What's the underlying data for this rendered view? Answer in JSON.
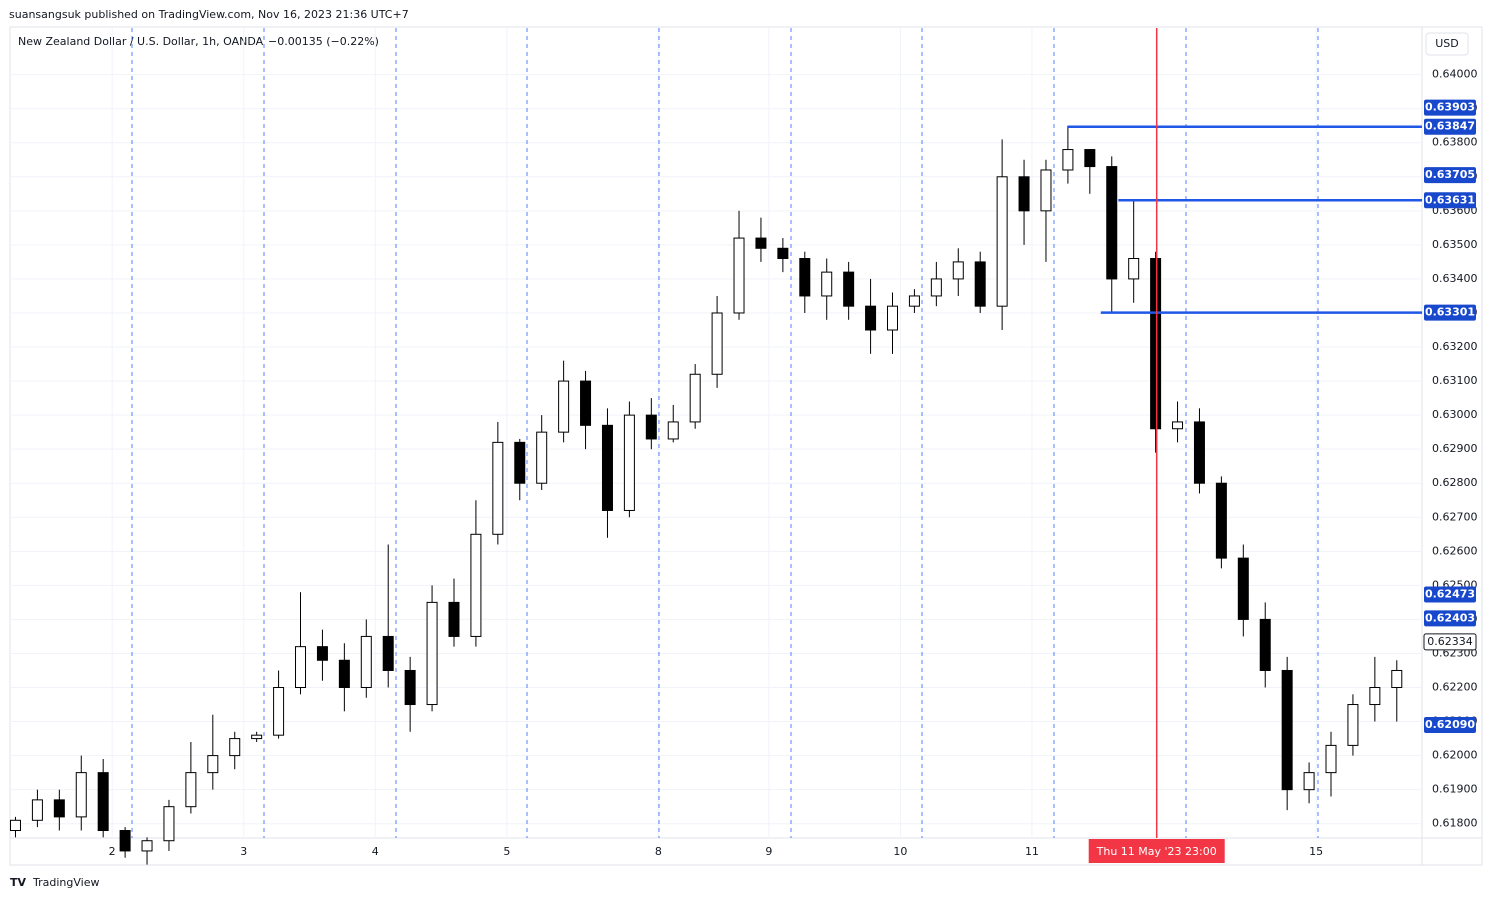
{
  "publisher": "suansangsuk published on TradingView.com, Nov 16, 2023 21:36 UTC+7",
  "footer": "TradingView",
  "chart_data": {
    "type": "candlestick",
    "title": "New Zealand Dollar / U.S. Dollar, 1h, OANDA",
    "change": "−0.00135 (−0.22%)",
    "currency": "USD",
    "grid": true,
    "up_color": "#ffffff",
    "down_color": "#000000",
    "line_color": "#2157e8",
    "crosshair_color": "#f23645",
    "ohlc": [
      [
        0.6178,
        0.6182,
        0.6176,
        0.6181
      ],
      [
        0.6181,
        0.619,
        0.6179,
        0.6187
      ],
      [
        0.6187,
        0.619,
        0.6178,
        0.6182
      ],
      [
        0.6182,
        0.62,
        0.6178,
        0.6195
      ],
      [
        0.6195,
        0.6199,
        0.6176,
        0.6178
      ],
      [
        0.6178,
        0.6179,
        0.617,
        0.6172
      ],
      [
        0.6172,
        0.6176,
        0.6168,
        0.6175
      ],
      [
        0.6175,
        0.6187,
        0.6172,
        0.6185
      ],
      [
        0.6185,
        0.6204,
        0.6183,
        0.6195
      ],
      [
        0.6195,
        0.6212,
        0.619,
        0.62
      ],
      [
        0.62,
        0.6207,
        0.6196,
        0.6205
      ],
      [
        0.6205,
        0.6207,
        0.6204,
        0.6206
      ],
      [
        0.6206,
        0.6225,
        0.6205,
        0.622
      ],
      [
        0.622,
        0.6248,
        0.6218,
        0.6232
      ],
      [
        0.6232,
        0.6237,
        0.6222,
        0.6228
      ],
      [
        0.6228,
        0.6233,
        0.6213,
        0.622
      ],
      [
        0.622,
        0.624,
        0.6217,
        0.6235
      ],
      [
        0.6235,
        0.6262,
        0.622,
        0.6225
      ],
      [
        0.6225,
        0.6229,
        0.6207,
        0.6215
      ],
      [
        0.6215,
        0.625,
        0.6213,
        0.6245
      ],
      [
        0.6245,
        0.6252,
        0.6232,
        0.6235
      ],
      [
        0.6235,
        0.6275,
        0.6232,
        0.6265
      ],
      [
        0.6265,
        0.6298,
        0.6262,
        0.6292
      ],
      [
        0.6292,
        0.6293,
        0.6275,
        0.628
      ],
      [
        0.628,
        0.63,
        0.6278,
        0.6295
      ],
      [
        0.6295,
        0.6316,
        0.6292,
        0.631
      ],
      [
        0.631,
        0.6313,
        0.629,
        0.6297
      ],
      [
        0.6297,
        0.6302,
        0.6264,
        0.6272
      ],
      [
        0.6272,
        0.6304,
        0.627,
        0.63
      ],
      [
        0.63,
        0.6305,
        0.629,
        0.6293
      ],
      [
        0.6293,
        0.6303,
        0.6292,
        0.6298
      ],
      [
        0.6298,
        0.6315,
        0.6296,
        0.6312
      ],
      [
        0.6312,
        0.6335,
        0.6308,
        0.633
      ],
      [
        0.633,
        0.636,
        0.6328,
        0.6352
      ],
      [
        0.6352,
        0.6358,
        0.6345,
        0.6349
      ],
      [
        0.6349,
        0.6352,
        0.6342,
        0.6346
      ],
      [
        0.6346,
        0.6348,
        0.633,
        0.6335
      ],
      [
        0.6335,
        0.6346,
        0.6328,
        0.6342
      ],
      [
        0.6342,
        0.6345,
        0.6328,
        0.6332
      ],
      [
        0.6332,
        0.634,
        0.6318,
        0.6325
      ],
      [
        0.6325,
        0.6336,
        0.6318,
        0.6332
      ],
      [
        0.6332,
        0.6337,
        0.633,
        0.6335
      ],
      [
        0.6335,
        0.6345,
        0.6332,
        0.634
      ],
      [
        0.634,
        0.6349,
        0.6335,
        0.6345
      ],
      [
        0.6345,
        0.6348,
        0.633,
        0.6332
      ],
      [
        0.6332,
        0.6381,
        0.6325,
        0.637
      ],
      [
        0.637,
        0.6375,
        0.635,
        0.636
      ],
      [
        0.636,
        0.6375,
        0.6345,
        0.6372
      ],
      [
        0.6372,
        0.6385,
        0.6368,
        0.6378
      ],
      [
        0.6378,
        0.6377,
        0.6365,
        0.6373
      ],
      [
        0.6373,
        0.6376,
        0.633,
        0.634
      ],
      [
        0.634,
        0.6363,
        0.6333,
        0.6346
      ],
      [
        0.6346,
        0.6348,
        0.6289,
        0.6296
      ],
      [
        0.6296,
        0.6304,
        0.6292,
        0.6298
      ],
      [
        0.6298,
        0.6302,
        0.6277,
        0.628
      ],
      [
        0.628,
        0.6282,
        0.6255,
        0.6258
      ],
      [
        0.6258,
        0.6262,
        0.6235,
        0.624
      ],
      [
        0.624,
        0.6245,
        0.622,
        0.6225
      ],
      [
        0.6225,
        0.6229,
        0.6184,
        0.619
      ],
      [
        0.619,
        0.6198,
        0.6186,
        0.6195
      ],
      [
        0.6195,
        0.6207,
        0.6188,
        0.6203
      ],
      [
        0.6203,
        0.6218,
        0.62,
        0.6215
      ],
      [
        0.6215,
        0.6229,
        0.621,
        0.622
      ],
      [
        0.622,
        0.6228,
        0.621,
        0.6225
      ]
    ],
    "xlim": [
      -0.25,
      64.15
    ],
    "xticks": [
      {
        "value": 4.41,
        "label": "2"
      },
      {
        "value": 10.41,
        "label": "3"
      },
      {
        "value": 16.41,
        "label": "4"
      },
      {
        "value": 22.41,
        "label": "5"
      },
      {
        "value": 29.32,
        "label": "8"
      },
      {
        "value": 34.36,
        "label": "9"
      },
      {
        "value": 40.36,
        "label": "10"
      },
      {
        "value": 46.36,
        "label": "11"
      },
      {
        "value": 59.32,
        "label": "15"
      }
    ],
    "ylim": [
      0.61758,
      0.64137
    ],
    "yticks": [
      {
        "value": 0.64,
        "label": "0.64000"
      },
      {
        "value": 0.639,
        "label": "0.63900"
      },
      {
        "value": 0.638,
        "label": "0.63800"
      },
      {
        "value": 0.637,
        "label": "0.63700"
      },
      {
        "value": 0.636,
        "label": "0.63600"
      },
      {
        "value": 0.635,
        "label": "0.63500"
      },
      {
        "value": 0.634,
        "label": "0.63400"
      },
      {
        "value": 0.633,
        "label": "0.63300"
      },
      {
        "value": 0.632,
        "label": "0.63200"
      },
      {
        "value": 0.631,
        "label": "0.63100"
      },
      {
        "value": 0.63,
        "label": "0.63000"
      },
      {
        "value": 0.629,
        "label": "0.62900"
      },
      {
        "value": 0.628,
        "label": "0.62800"
      },
      {
        "value": 0.627,
        "label": "0.62700"
      },
      {
        "value": 0.626,
        "label": "0.62600"
      },
      {
        "value": 0.625,
        "label": "0.62500"
      },
      {
        "value": 0.624,
        "label": "0.62400"
      },
      {
        "value": 0.623,
        "label": "0.62300"
      },
      {
        "value": 0.622,
        "label": "0.62200"
      },
      {
        "value": 0.621,
        "label": "0.62100"
      },
      {
        "value": 0.62,
        "label": "0.62000"
      },
      {
        "value": 0.619,
        "label": "0.61900"
      },
      {
        "value": 0.618,
        "label": "0.61800"
      }
    ],
    "hlines": [
      {
        "value": 0.63847,
        "start_x": 48
      },
      {
        "value": 0.63631,
        "start_x": 50.3
      },
      {
        "value": 0.63301,
        "start_x": 49.5
      }
    ],
    "price_labels": [
      {
        "value": 0.63903,
        "label": "0.63903"
      },
      {
        "value": 0.63847,
        "label": "0.63847"
      },
      {
        "value": 0.63705,
        "label": "0.63705"
      },
      {
        "value": 0.63631,
        "label": "0.63631"
      },
      {
        "value": 0.63301,
        "label": "0.63301"
      },
      {
        "value": 0.62473,
        "label": "0.62473"
      },
      {
        "value": 0.62403,
        "label": "0.62403"
      },
      {
        "value": 0.6209,
        "label": "0.62090"
      }
    ],
    "last_price": {
      "value": 0.62334,
      "label": "0.62334"
    },
    "crosshair": {
      "x": 52.05,
      "label": "Thu 11 May '23  23:00"
    }
  }
}
